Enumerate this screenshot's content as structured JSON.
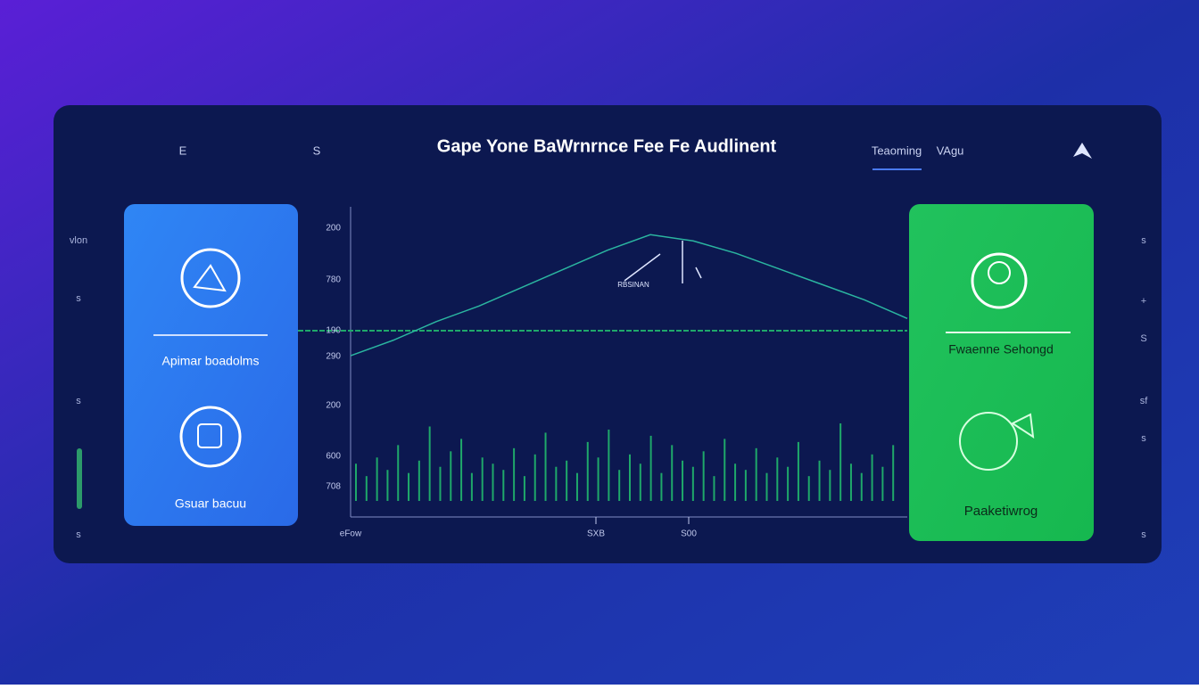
{
  "header": {
    "left_items": [
      "E",
      "S"
    ],
    "title": "Gape Yone BaWrnrnce Fee Fe Audlinent",
    "tabs": [
      "Teaoming",
      "VAgu"
    ]
  },
  "side_left": [
    "vlon",
    "s",
    "s",
    "s"
  ],
  "side_right": [
    "s",
    "+",
    "S",
    "sf",
    "s",
    "s"
  ],
  "card_left": {
    "items": [
      "Apimar boadolms",
      "Gsuar bacuu"
    ]
  },
  "card_right": {
    "items": [
      "Fwaenne Sehongd",
      "Paaketiwrog"
    ]
  },
  "chart": {
    "y_labels": [
      "200",
      "780",
      "190",
      "290",
      "200",
      "600",
      "708"
    ],
    "x_labels": [
      "eFow",
      "SXB",
      "S00"
    ],
    "annotation": "RBSINAN",
    "line_color": "#2bb5a0",
    "line": [
      52,
      57,
      63,
      68,
      74,
      80,
      86,
      91,
      89,
      85,
      80,
      75,
      70,
      64
    ],
    "bar_color": "#1fa86a",
    "bars": [
      12,
      8,
      14,
      10,
      18,
      9,
      13,
      24,
      11,
      16,
      20,
      9,
      14,
      12,
      10,
      17,
      8,
      15,
      22,
      11,
      13,
      9,
      19,
      14,
      23,
      10,
      15,
      12,
      21,
      9,
      18,
      13,
      11,
      16,
      8,
      20,
      12,
      10,
      17,
      9,
      14,
      11,
      19,
      8,
      13,
      10,
      25,
      12,
      9,
      15,
      11,
      18
    ]
  }
}
